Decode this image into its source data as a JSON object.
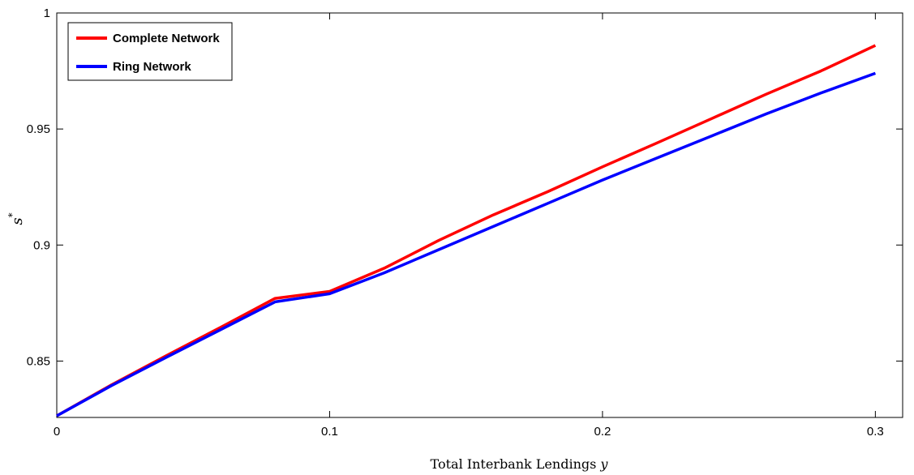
{
  "chart_data": {
    "type": "line",
    "title": "",
    "xlabel": "Total Interbank Lendings",
    "xlabel_var": "y",
    "ylabel": "s",
    "ylabel_sup": "*",
    "xlim": [
      0,
      0.31
    ],
    "ylim": [
      0.8257,
      1.0
    ],
    "xticks": [
      0,
      0.1,
      0.2,
      0.3
    ],
    "xtick_labels": [
      "0",
      "0.1",
      "0.2",
      "0.3"
    ],
    "yticks": [
      0.85,
      0.9,
      0.95,
      1.0
    ],
    "ytick_labels": [
      "0.85",
      "0.9",
      "0.95",
      "1"
    ],
    "grid": false,
    "legend_position": "top-left",
    "series": [
      {
        "name": "Complete Network",
        "color": "#ff0000",
        "x": [
          0,
          0.02,
          0.04,
          0.06,
          0.08,
          0.1,
          0.12,
          0.14,
          0.16,
          0.18,
          0.2,
          0.22,
          0.24,
          0.26,
          0.28,
          0.3
        ],
        "y": [
          0.8264,
          0.8397,
          0.8522,
          0.8645,
          0.877,
          0.88,
          0.89,
          0.902,
          0.913,
          0.923,
          0.9337,
          0.944,
          0.9545,
          0.965,
          0.975,
          0.986
        ]
      },
      {
        "name": "Ring Network",
        "color": "#0000ff",
        "x": [
          0,
          0.02,
          0.04,
          0.06,
          0.08,
          0.1,
          0.12,
          0.14,
          0.16,
          0.18,
          0.2,
          0.22,
          0.24,
          0.26,
          0.28,
          0.3
        ],
        "y": [
          0.8264,
          0.8394,
          0.8515,
          0.8635,
          0.8755,
          0.879,
          0.888,
          0.898,
          0.908,
          0.918,
          0.928,
          0.9375,
          0.947,
          0.9565,
          0.9655,
          0.974
        ]
      }
    ]
  }
}
